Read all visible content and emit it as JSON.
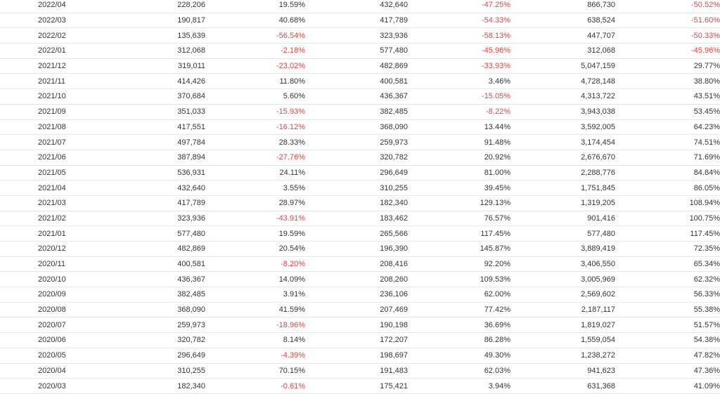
{
  "colors": {
    "negative": "#e8413b",
    "text": "#333333",
    "row_border": "#e6e6e6"
  },
  "table": {
    "rows": [
      {
        "month": "2022/04",
        "v1": "228,206",
        "p1": "19.59%",
        "v2": "432,640",
        "p2": "-47.25%",
        "v3": "866,730",
        "p3": "-50.52%"
      },
      {
        "month": "2022/03",
        "v1": "190,817",
        "p1": "40.68%",
        "v2": "417,789",
        "p2": "-54.33%",
        "v3": "638,524",
        "p3": "-51.60%"
      },
      {
        "month": "2022/02",
        "v1": "135,639",
        "p1": "-56.54%",
        "v2": "323,936",
        "p2": "-58.13%",
        "v3": "447,707",
        "p3": "-50.33%"
      },
      {
        "month": "2022/01",
        "v1": "312,068",
        "p1": "-2.18%",
        "v2": "577,480",
        "p2": "-45.96%",
        "v3": "312,068",
        "p3": "-45.96%"
      },
      {
        "month": "2021/12",
        "v1": "319,011",
        "p1": "-23.02%",
        "v2": "482,869",
        "p2": "-33.93%",
        "v3": "5,047,159",
        "p3": "29.77%"
      },
      {
        "month": "2021/11",
        "v1": "414,426",
        "p1": "11.80%",
        "v2": "400,581",
        "p2": "3.46%",
        "v3": "4,728,148",
        "p3": "38.80%"
      },
      {
        "month": "2021/10",
        "v1": "370,684",
        "p1": "5.60%",
        "v2": "436,367",
        "p2": "-15.05%",
        "v3": "4,313,722",
        "p3": "43.51%"
      },
      {
        "month": "2021/09",
        "v1": "351,033",
        "p1": "-15.93%",
        "v2": "382,485",
        "p2": "-8.22%",
        "v3": "3,943,038",
        "p3": "53.45%"
      },
      {
        "month": "2021/08",
        "v1": "417,551",
        "p1": "-16.12%",
        "v2": "368,090",
        "p2": "13.44%",
        "v3": "3,592,005",
        "p3": "64.23%"
      },
      {
        "month": "2021/07",
        "v1": "497,784",
        "p1": "28.33%",
        "v2": "259,973",
        "p2": "91.48%",
        "v3": "3,174,454",
        "p3": "74.51%"
      },
      {
        "month": "2021/06",
        "v1": "387,894",
        "p1": "-27.76%",
        "v2": "320,782",
        "p2": "20.92%",
        "v3": "2,676,670",
        "p3": "71.69%"
      },
      {
        "month": "2021/05",
        "v1": "536,931",
        "p1": "24.11%",
        "v2": "296,649",
        "p2": "81.00%",
        "v3": "2,288,776",
        "p3": "84.84%"
      },
      {
        "month": "2021/04",
        "v1": "432,640",
        "p1": "3.55%",
        "v2": "310,255",
        "p2": "39.45%",
        "v3": "1,751,845",
        "p3": "86.05%"
      },
      {
        "month": "2021/03",
        "v1": "417,789",
        "p1": "28.97%",
        "v2": "182,340",
        "p2": "129.13%",
        "v3": "1,319,205",
        "p3": "108.94%"
      },
      {
        "month": "2021/02",
        "v1": "323,936",
        "p1": "-43.91%",
        "v2": "183,462",
        "p2": "76.57%",
        "v3": "901,416",
        "p3": "100.75%"
      },
      {
        "month": "2021/01",
        "v1": "577,480",
        "p1": "19.59%",
        "v2": "265,566",
        "p2": "117.45%",
        "v3": "577,480",
        "p3": "117.45%"
      },
      {
        "month": "2020/12",
        "v1": "482,869",
        "p1": "20.54%",
        "v2": "196,390",
        "p2": "145.87%",
        "v3": "3,889,419",
        "p3": "72.35%"
      },
      {
        "month": "2020/11",
        "v1": "400,581",
        "p1": "-8.20%",
        "v2": "208,416",
        "p2": "92.20%",
        "v3": "3,406,550",
        "p3": "65.34%"
      },
      {
        "month": "2020/10",
        "v1": "436,367",
        "p1": "14.09%",
        "v2": "208,260",
        "p2": "109.53%",
        "v3": "3,005,969",
        "p3": "62.32%"
      },
      {
        "month": "2020/09",
        "v1": "382,485",
        "p1": "3.91%",
        "v2": "236,106",
        "p2": "62.00%",
        "v3": "2,569,602",
        "p3": "56.33%"
      },
      {
        "month": "2020/08",
        "v1": "368,090",
        "p1": "41.59%",
        "v2": "207,469",
        "p2": "77.42%",
        "v3": "2,187,117",
        "p3": "55.38%"
      },
      {
        "month": "2020/07",
        "v1": "259,973",
        "p1": "-18.96%",
        "v2": "190,198",
        "p2": "36.69%",
        "v3": "1,819,027",
        "p3": "51.57%"
      },
      {
        "month": "2020/06",
        "v1": "320,782",
        "p1": "8.14%",
        "v2": "172,207",
        "p2": "86.28%",
        "v3": "1,559,054",
        "p3": "54.38%"
      },
      {
        "month": "2020/05",
        "v1": "296,649",
        "p1": "-4.39%",
        "v2": "198,697",
        "p2": "49.30%",
        "v3": "1,238,272",
        "p3": "47.82%"
      },
      {
        "month": "2020/04",
        "v1": "310,255",
        "p1": "70.15%",
        "v2": "191,483",
        "p2": "62.03%",
        "v3": "941,623",
        "p3": "47.36%"
      },
      {
        "month": "2020/03",
        "v1": "182,340",
        "p1": "-0.61%",
        "v2": "175,421",
        "p2": "3.94%",
        "v3": "631,368",
        "p3": "41.09%"
      }
    ]
  }
}
